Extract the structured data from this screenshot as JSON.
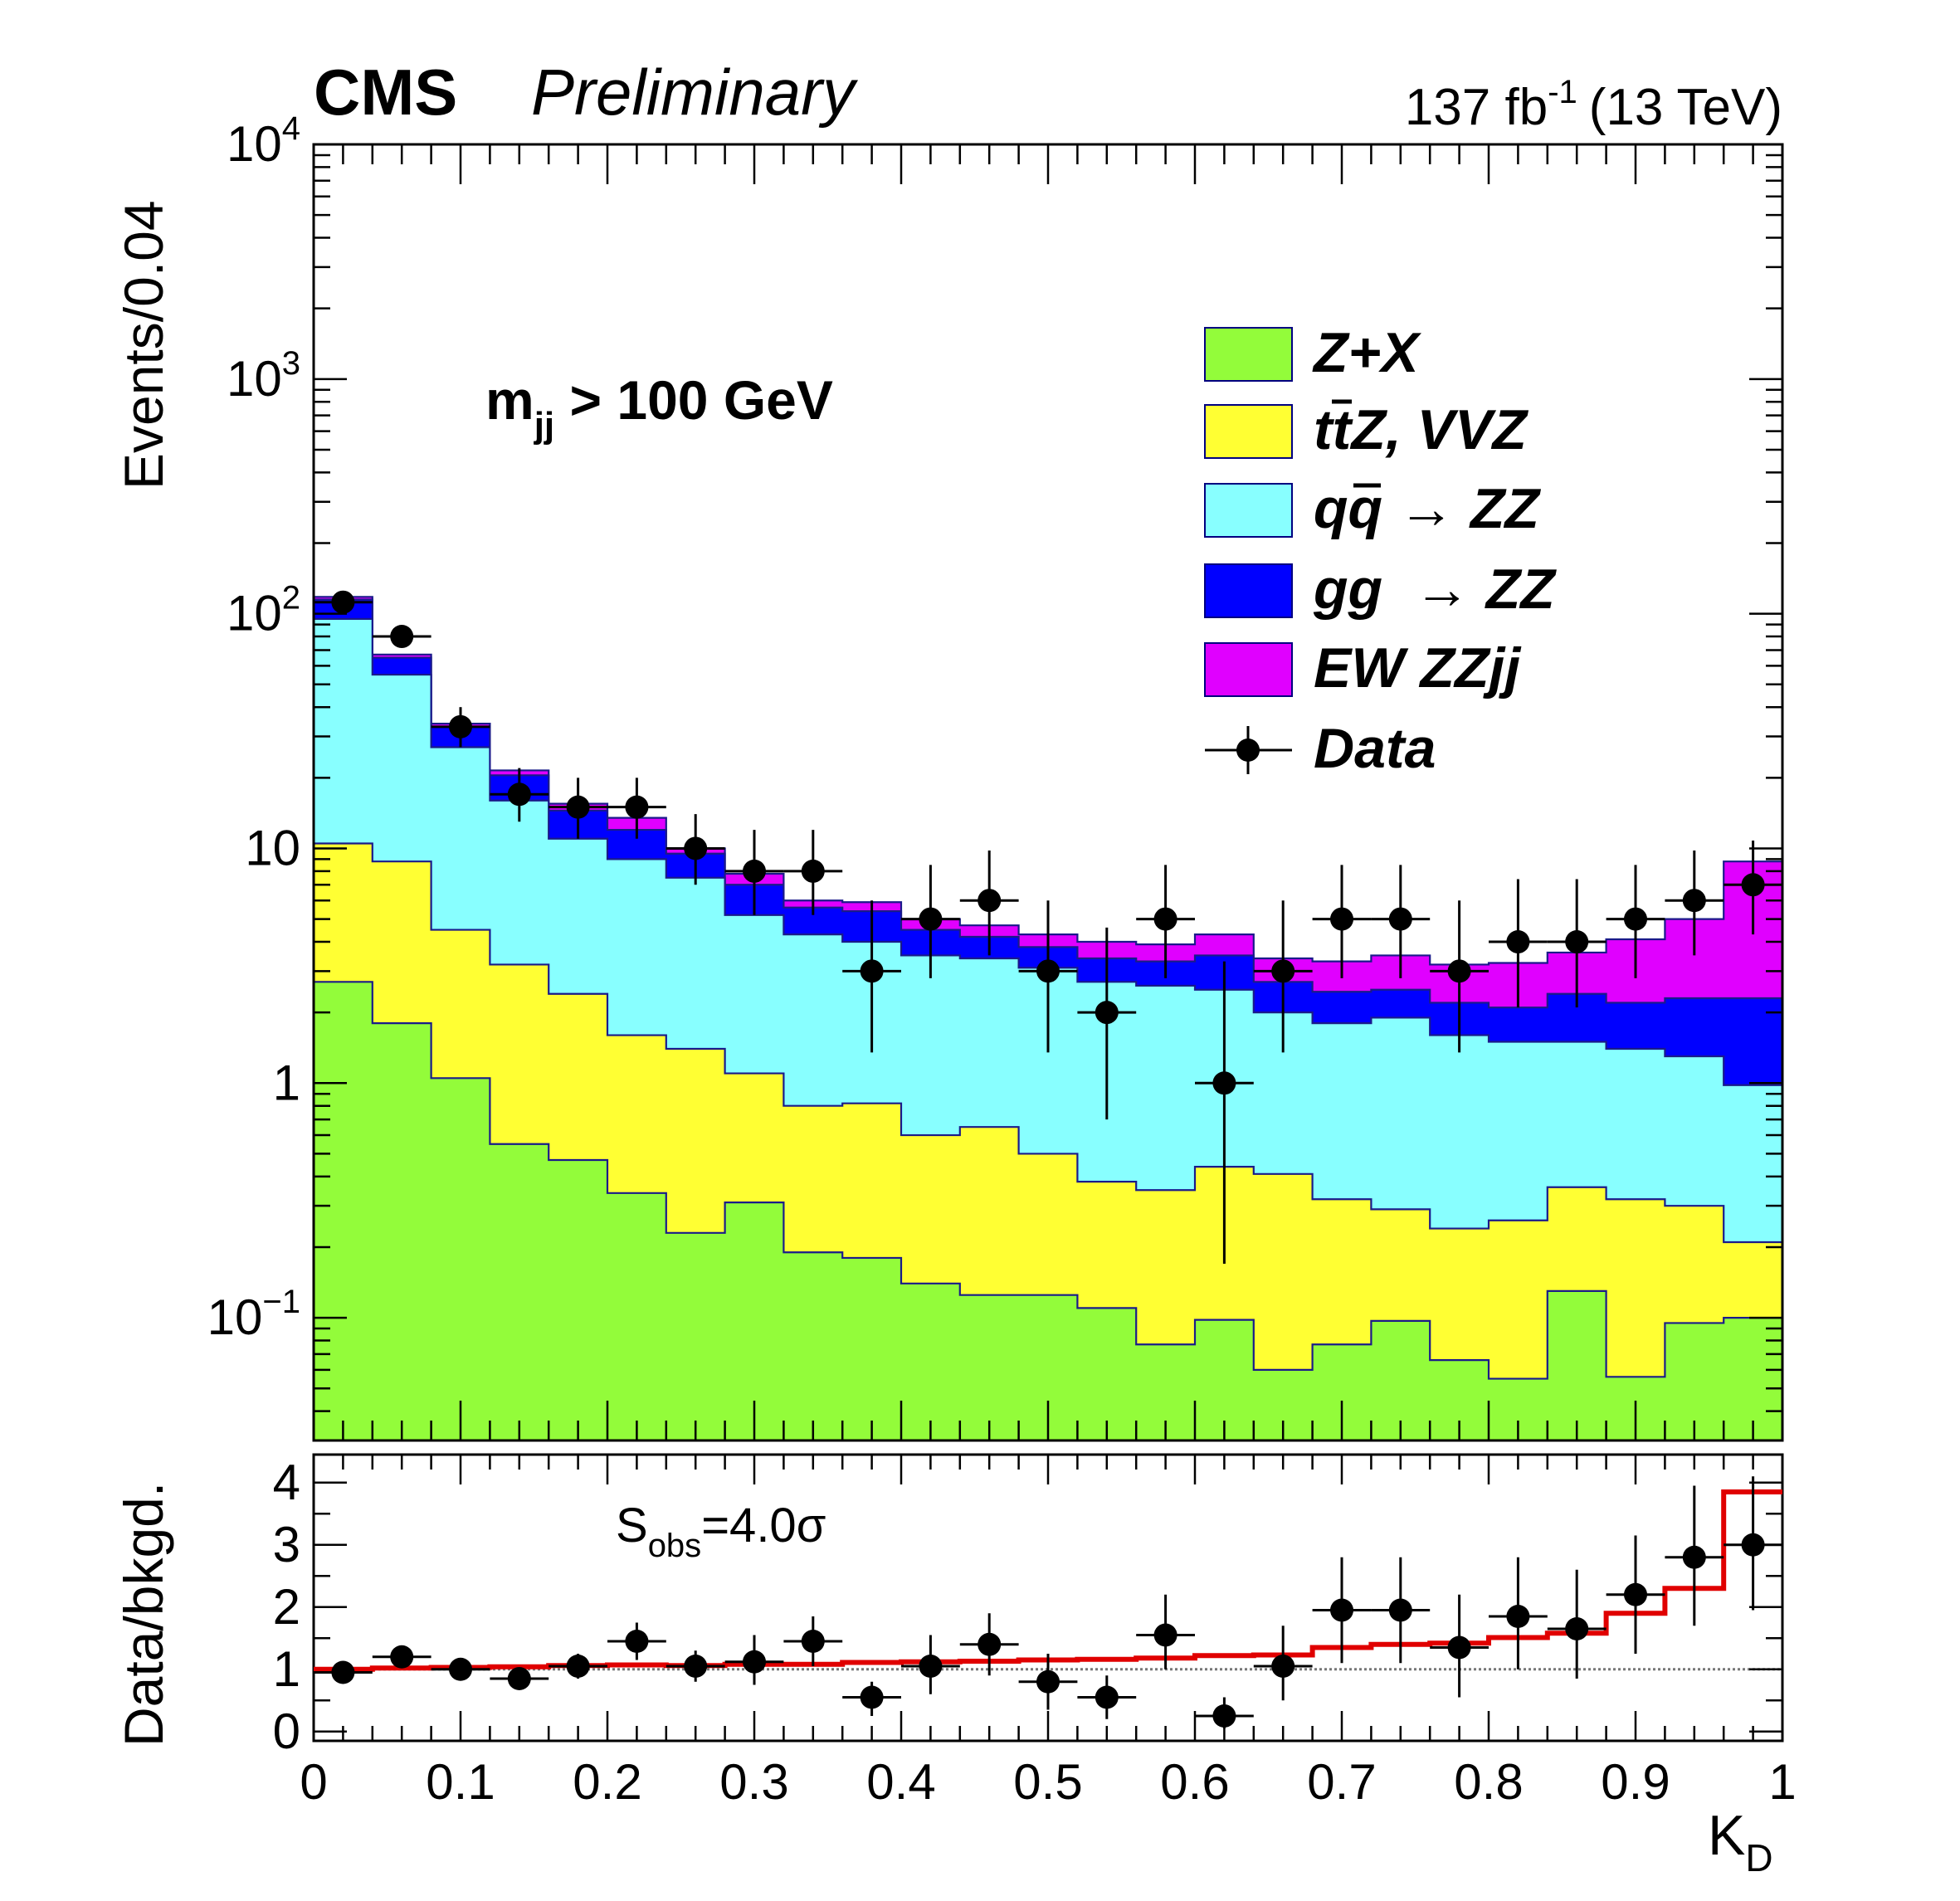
{
  "chart_data": [
    {
      "type": "area",
      "subtype": "stacked-histogram",
      "header": {
        "experiment": "CMS",
        "status": "Preliminary",
        "lumi": "137 fb",
        "lumi_exp": "-1",
        "energy": "(13 TeV)"
      },
      "ylabel": "Events/0.04",
      "yscale": "log",
      "ylim": [
        0.03,
        10000
      ],
      "xlim": [
        0,
        1
      ],
      "yticks": [
        {
          "value": 0.1,
          "base": "10",
          "exp": "−1"
        },
        {
          "value": 1,
          "text": "1"
        },
        {
          "value": 10,
          "text": "10"
        },
        {
          "value": 100,
          "base": "10",
          "exp": "2"
        },
        {
          "value": 1000,
          "base": "10",
          "exp": "3"
        },
        {
          "value": 10000,
          "base": "10",
          "exp": "4"
        }
      ],
      "annotation": {
        "base": "m",
        "sub": "jj",
        "rest": " > 100 GeV"
      },
      "bin_edges": [
        0,
        0.04,
        0.08,
        0.12,
        0.16,
        0.2,
        0.24,
        0.28,
        0.32,
        0.36,
        0.4,
        0.44,
        0.48,
        0.52,
        0.56,
        0.6,
        0.64,
        0.68,
        0.72,
        0.76,
        0.8,
        0.84,
        0.88,
        0.92,
        0.96,
        1.0
      ],
      "legend": [
        {
          "label": "Z+X",
          "color": "#93fc3a"
        },
        {
          "label": "t̅t̅Z, VVZ",
          "label_t": "t",
          "label_tbar": "t",
          "label_rest": "Z, VVZ",
          "color": "#ffff33"
        },
        {
          "label_q": "q",
          "label_qbar": "q",
          "label_rest": " → ZZ",
          "color": "#88ffff"
        },
        {
          "label": "gg  → ZZ",
          "color": "#0000ff"
        },
        {
          "label": "EW ZZjj",
          "color": "#e000ff"
        },
        {
          "label": "Data",
          "color": "#000000"
        }
      ],
      "series": [
        {
          "name": "Z+X",
          "color": "#93fc3a",
          "cumulative": [
            2.7,
            1.8,
            1.05,
            0.55,
            0.47,
            0.34,
            0.23,
            0.31,
            0.19,
            0.18,
            0.14,
            0.125,
            0.125,
            0.11,
            0.077,
            0.098,
            0.06,
            0.077,
            0.097,
            0.066,
            0.055,
            0.13,
            0.056,
            0.095,
            0.1
          ]
        },
        {
          "name": "ttZ, VVZ",
          "color": "#ffff33",
          "cumulative": [
            10.5,
            8.8,
            4.5,
            3.2,
            2.4,
            1.6,
            1.4,
            1.1,
            0.8,
            0.82,
            0.6,
            0.65,
            0.5,
            0.38,
            0.35,
            0.44,
            0.41,
            0.32,
            0.29,
            0.24,
            0.26,
            0.36,
            0.32,
            0.3,
            0.21
          ]
        },
        {
          "name": "qq → ZZ",
          "color": "#88ffff",
          "cumulative": [
            95,
            55,
            27,
            16,
            11,
            9,
            7.5,
            5.2,
            4.3,
            4.0,
            3.5,
            3.4,
            3.1,
            2.7,
            2.6,
            2.5,
            2.0,
            1.8,
            1.9,
            1.6,
            1.5,
            1.5,
            1.4,
            1.3,
            0.98
          ]
        },
        {
          "name": "gg → ZZ",
          "color": "#0000ff",
          "cumulative": [
            115,
            65,
            33,
            20.5,
            14.5,
            12,
            9.5,
            7.0,
            5.6,
            5.4,
            4.5,
            4.2,
            3.8,
            3.4,
            3.3,
            3.5,
            2.7,
            2.45,
            2.5,
            2.2,
            2.1,
            2.4,
            2.2,
            2.3,
            2.3
          ]
        },
        {
          "name": "EW ZZjj",
          "color": "#e000ff",
          "cumulative": [
            118,
            67,
            34,
            21.5,
            15.5,
            13.5,
            10,
            7.8,
            6.0,
            5.9,
            5.0,
            4.7,
            4.3,
            4.0,
            3.9,
            4.3,
            3.4,
            3.3,
            3.5,
            3.2,
            3.25,
            3.6,
            4.1,
            5.0,
            8.8
          ]
        }
      ],
      "data": {
        "name": "Data",
        "x": [
          0.02,
          0.06,
          0.1,
          0.14,
          0.18,
          0.22,
          0.26,
          0.3,
          0.34,
          0.38,
          0.42,
          0.46,
          0.5,
          0.54,
          0.58,
          0.62,
          0.66,
          0.7,
          0.74,
          0.78,
          0.82,
          0.86,
          0.9,
          0.94,
          0.98
        ],
        "y": [
          112,
          80,
          33,
          17,
          15,
          15,
          10,
          8,
          8,
          3,
          5,
          6,
          3,
          2,
          5,
          1,
          3,
          5,
          5,
          3,
          4,
          4,
          5,
          6,
          7
        ],
        "ylow": [
          101,
          72,
          27,
          13,
          11,
          11,
          7,
          5.2,
          5.2,
          1.35,
          2.8,
          3.5,
          1.35,
          0.7,
          2.8,
          0.17,
          1.35,
          2.8,
          2.8,
          1.35,
          2.1,
          2.1,
          2.8,
          3.5,
          4.3
        ],
        "yhigh": [
          124,
          89,
          40,
          22,
          20,
          20,
          14,
          12,
          12,
          6,
          8.5,
          9.8,
          6,
          4.6,
          8.5,
          3.3,
          6,
          8.5,
          8.5,
          6,
          7.4,
          7.4,
          8.5,
          9.8,
          10.8
        ]
      }
    },
    {
      "type": "line",
      "subtype": "ratio",
      "ylabel": "Data/bkgd.",
      "xlabel_base": "K",
      "xlabel_sub": "D",
      "ylim": [
        -0.15,
        4.45
      ],
      "xlim": [
        0,
        1
      ],
      "yticks": [
        0,
        1,
        2,
        3,
        4
      ],
      "xticks": [
        {
          "value": 0,
          "text": "0"
        },
        {
          "value": 0.1,
          "text": "0.1"
        },
        {
          "value": 0.2,
          "text": "0.2"
        },
        {
          "value": 0.3,
          "text": "0.3"
        },
        {
          "value": 0.4,
          "text": "0.4"
        },
        {
          "value": 0.5,
          "text": "0.5"
        },
        {
          "value": 0.6,
          "text": "0.6"
        },
        {
          "value": 0.7,
          "text": "0.7"
        },
        {
          "value": 0.8,
          "text": "0.8"
        },
        {
          "value": 0.9,
          "text": "0.9"
        },
        {
          "value": 1,
          "text": "1"
        }
      ],
      "annotation": {
        "base": "S",
        "sub": "obs",
        "rest": "=4.0σ"
      },
      "expected_ratio": [
        1.0,
        1.02,
        1.03,
        1.04,
        1.06,
        1.07,
        1.06,
        1.08,
        1.08,
        1.11,
        1.12,
        1.13,
        1.15,
        1.16,
        1.18,
        1.22,
        1.23,
        1.35,
        1.4,
        1.42,
        1.51,
        1.58,
        1.9,
        2.3,
        3.85
      ],
      "expected_color": "#e00000",
      "data": {
        "x": [
          0.02,
          0.06,
          0.1,
          0.14,
          0.18,
          0.22,
          0.26,
          0.3,
          0.34,
          0.38,
          0.42,
          0.46,
          0.5,
          0.54,
          0.58,
          0.62,
          0.66,
          0.7,
          0.74,
          0.78,
          0.82,
          0.86,
          0.9,
          0.94,
          0.98
        ],
        "y": [
          0.95,
          1.2,
          1.0,
          0.85,
          1.05,
          1.45,
          1.05,
          1.12,
          1.45,
          0.55,
          1.05,
          1.4,
          0.8,
          0.55,
          1.55,
          0.25,
          1.05,
          1.95,
          1.95,
          1.35,
          1.85,
          1.65,
          2.2,
          2.8,
          3.0
        ],
        "ylow": [
          0.85,
          1.08,
          0.88,
          0.72,
          0.85,
          1.15,
          0.8,
          0.75,
          1.05,
          0.25,
          0.6,
          0.9,
          0.35,
          0.2,
          1.0,
          0.05,
          0.5,
          1.1,
          1.1,
          0.55,
          1.0,
          0.85,
          1.25,
          1.7,
          1.95
        ],
        "yhigh": [
          1.05,
          1.32,
          1.12,
          0.98,
          1.25,
          1.75,
          1.3,
          1.55,
          1.85,
          0.8,
          1.55,
          1.9,
          1.25,
          0.9,
          2.2,
          0.55,
          1.7,
          2.8,
          2.8,
          2.2,
          2.8,
          2.6,
          3.15,
          3.95,
          4.1
        ]
      }
    }
  ]
}
